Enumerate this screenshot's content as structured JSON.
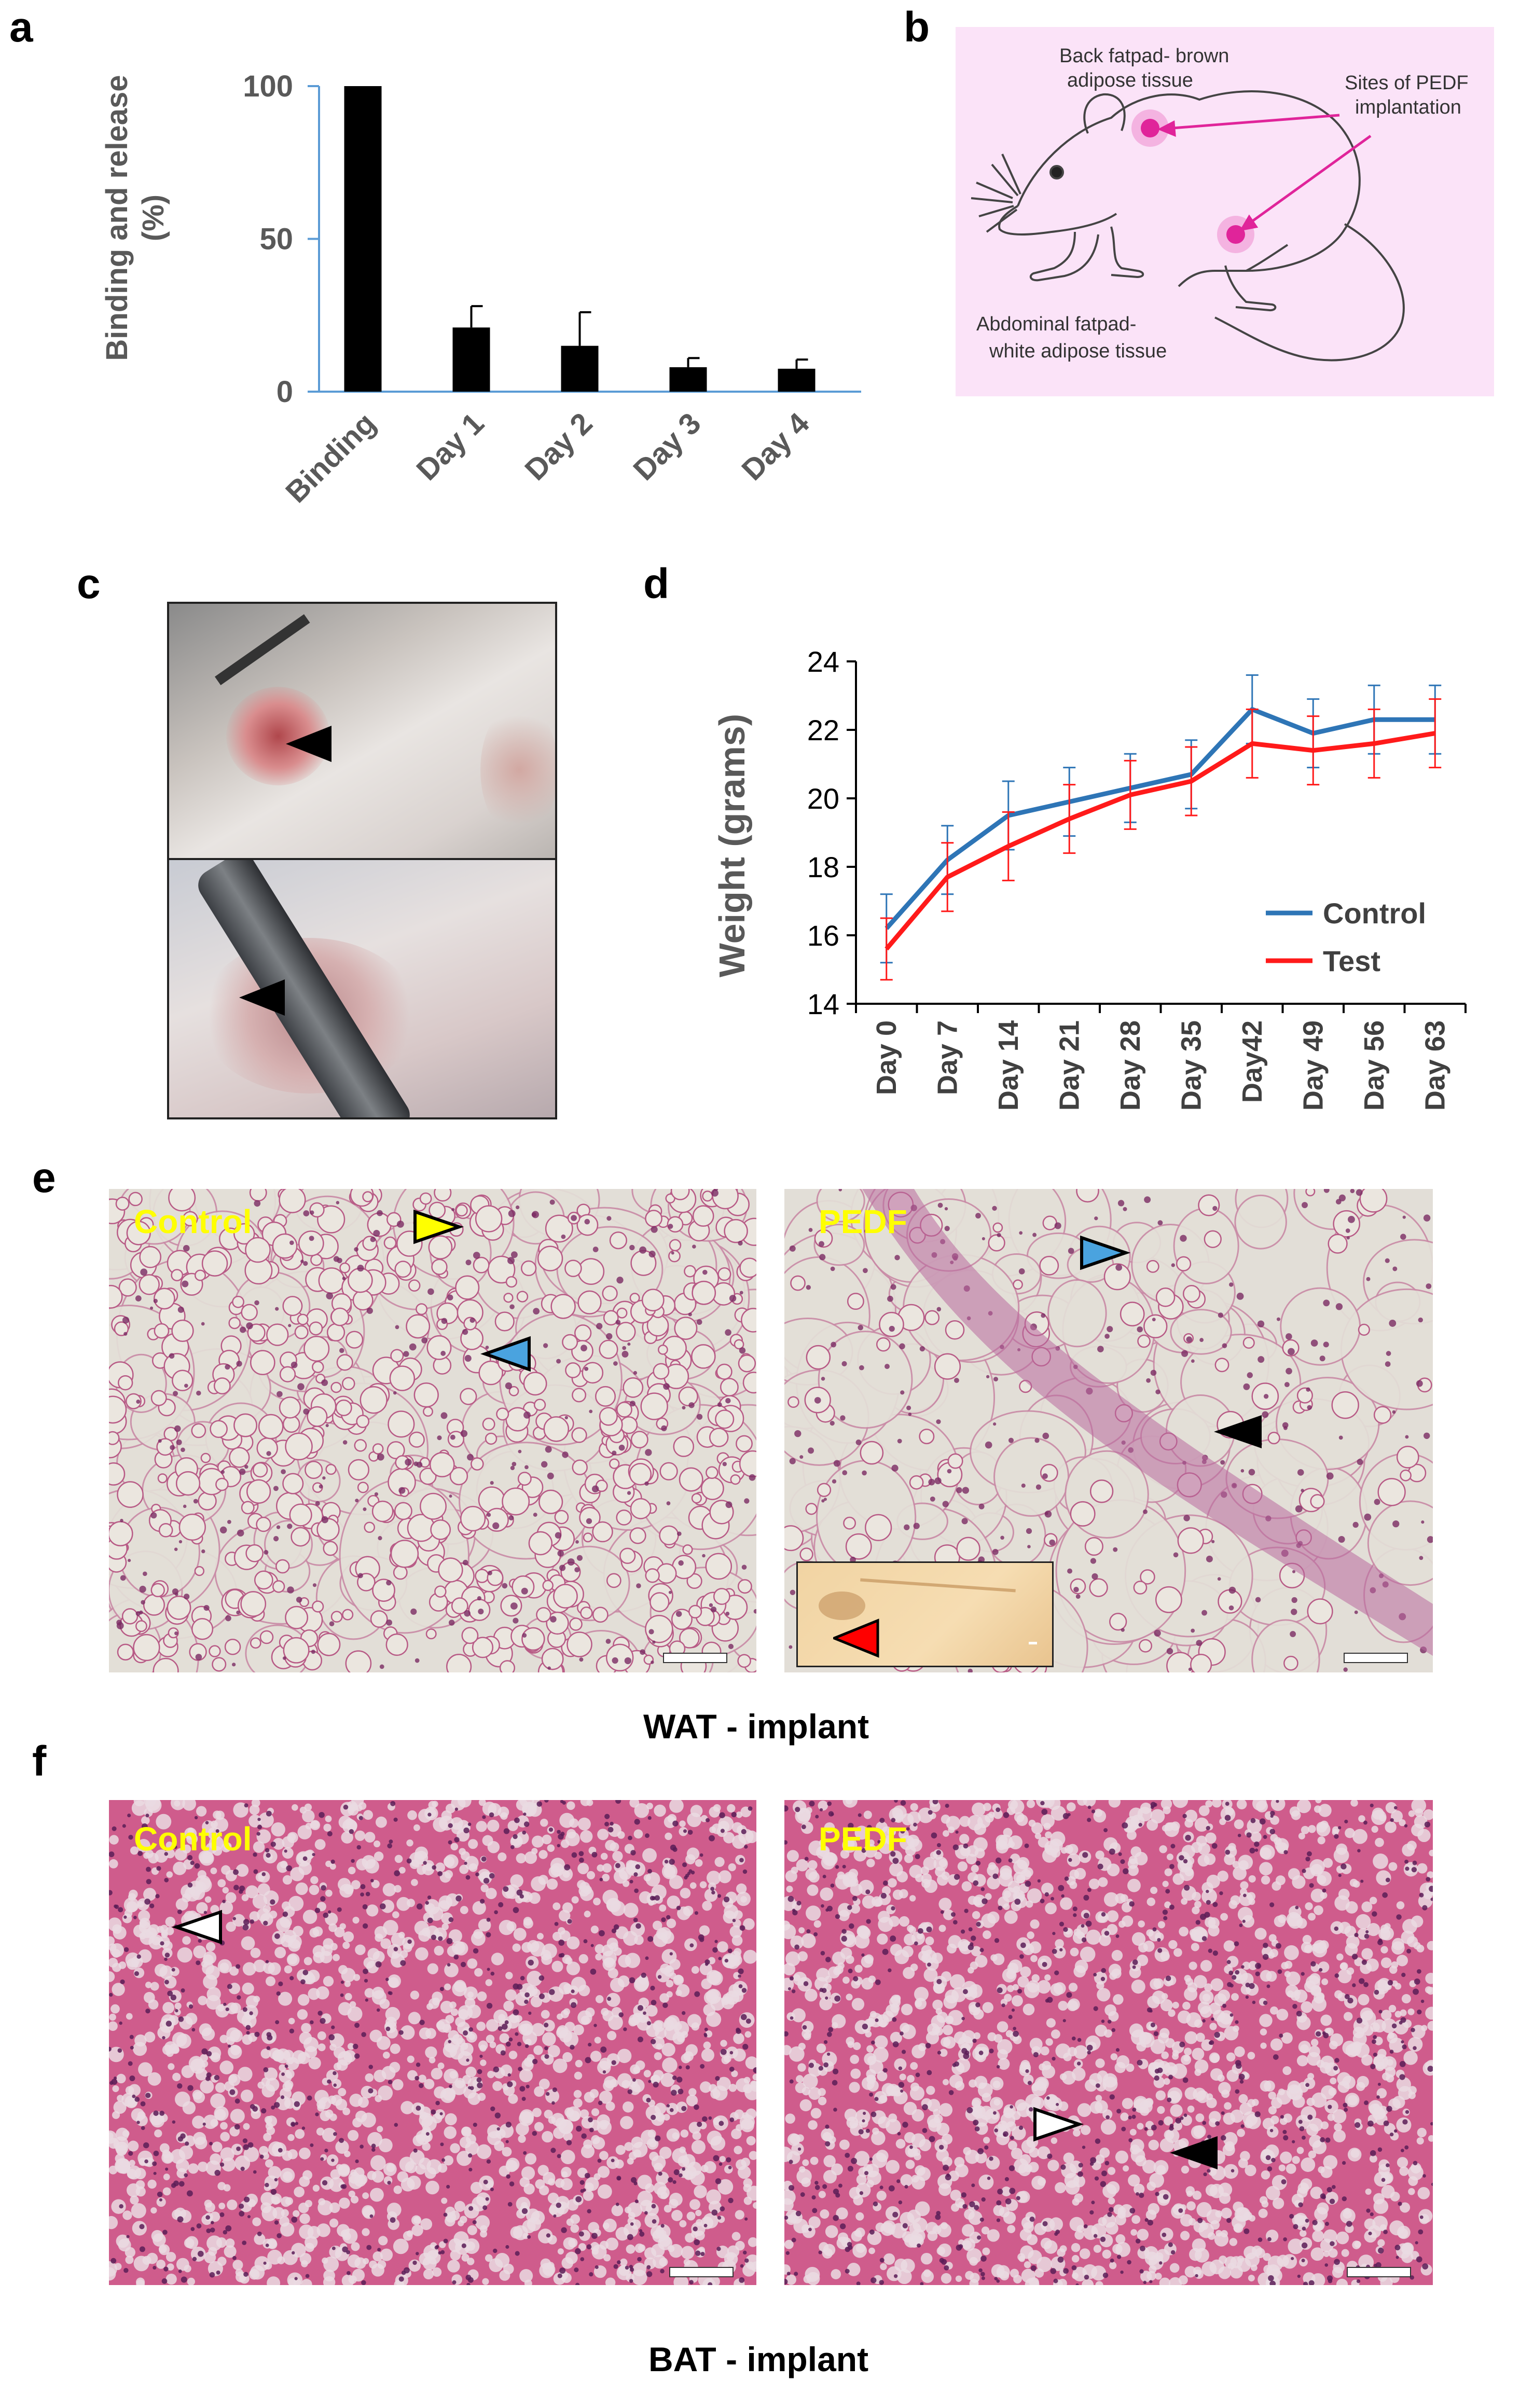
{
  "panels": {
    "a": {
      "label": "a",
      "chart_data": {
        "type": "bar",
        "categories": [
          "Binding",
          "Day 1",
          "Day 2",
          "Day 3",
          "Day 4"
        ],
        "values": [
          100,
          21,
          15,
          8,
          7.5
        ],
        "errors": [
          0,
          7,
          11,
          3,
          3
        ],
        "ylabel": "Binding and release (%)",
        "ylabel_line1": "Binding and release",
        "ylabel_line2": "(%)",
        "ylim": [
          0,
          100
        ],
        "yticks": [
          "0",
          "50",
          "100"
        ],
        "bar_color": "#000000"
      }
    },
    "b": {
      "label": "b",
      "text_back": [
        "Back fatpad- brown",
        "adipose tissue"
      ],
      "text_sites": [
        "Sites of PEDF",
        "implantation"
      ],
      "text_abdominal": [
        "Abdominal fatpad-",
        "white adipose tissue"
      ],
      "background": "#fbe3f8",
      "marker_color": "#e0249a"
    },
    "c": {
      "label": "c"
    },
    "d": {
      "label": "d",
      "chart_data": {
        "type": "line",
        "categories": [
          "Day 0",
          "Day 7",
          "Day 14",
          "Day 21",
          "Day 28",
          "Day 35",
          "Day42",
          "Day 49",
          "Day 56",
          "Day 63"
        ],
        "series": [
          {
            "name": "Control",
            "color": "#2e75b6",
            "values": [
              16.2,
              18.2,
              19.5,
              19.9,
              20.3,
              20.7,
              22.6,
              21.9,
              22.3,
              22.3
            ],
            "errors": [
              1.0,
              1.0,
              1.0,
              1.0,
              1.0,
              1.0,
              1.0,
              1.0,
              1.0,
              1.0
            ]
          },
          {
            "name": "Test",
            "color": "#ff1a1a",
            "values": [
              15.6,
              17.7,
              18.6,
              19.4,
              20.1,
              20.5,
              21.6,
              21.4,
              21.6,
              21.9
            ],
            "errors": [
              0.9,
              1.0,
              1.0,
              1.0,
              1.0,
              1.0,
              1.0,
              1.0,
              1.0,
              1.0
            ]
          }
        ],
        "ylabel": "Weight (grams)",
        "ylim": [
          14,
          24
        ],
        "yticks": [
          "14",
          "16",
          "18",
          "20",
          "22",
          "24"
        ],
        "legend_position": "lower-right"
      }
    },
    "e": {
      "label": "e",
      "left_label": "Control",
      "right_label": "PEDF",
      "caption": "WAT - implant",
      "label_color": "#ffff00"
    },
    "f": {
      "label": "f",
      "left_label": "Control",
      "right_label": "PEDF",
      "caption": "BAT - implant",
      "label_color": "#ffff00"
    }
  }
}
